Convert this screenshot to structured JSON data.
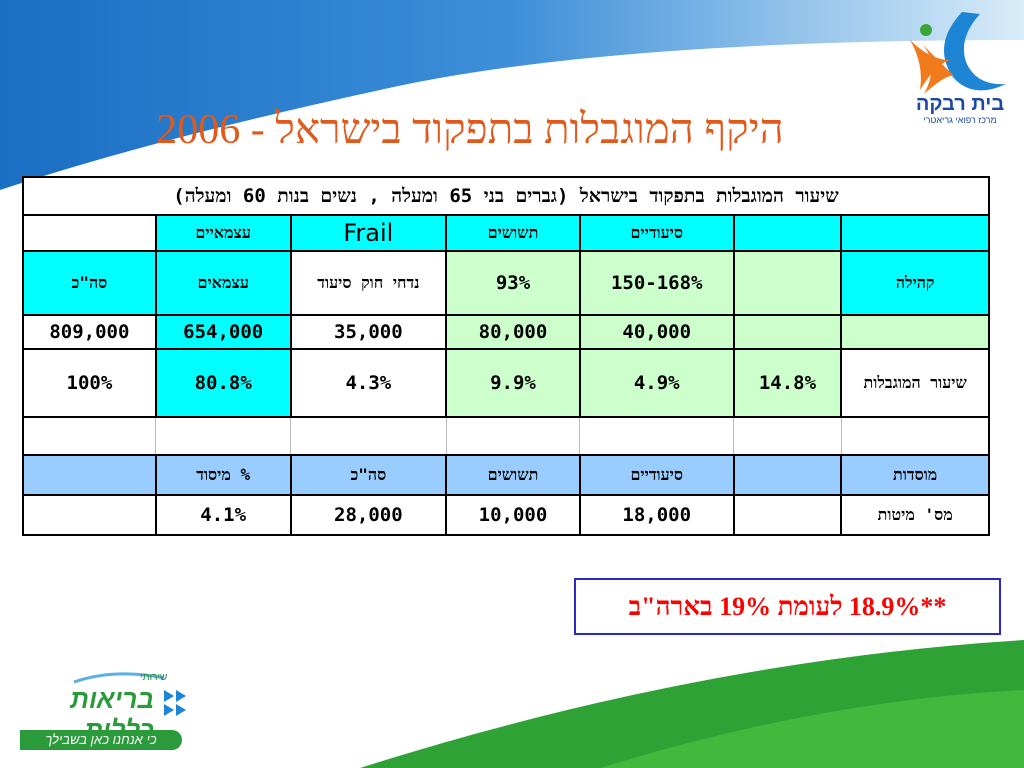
{
  "slide": {
    "title": "היקף המוגבלות בתפקוד בישראל - 2006"
  },
  "logo_top": {
    "name": "בית רבקה",
    "subtitle": "מרכז רפואי גריאטרי"
  },
  "table": {
    "caption": "שיעור המוגבלות בתפקוד בישראל (גברים בני 65 ומעלה , נשים בנות 60 ומעלה)",
    "header_row": [
      "",
      "סיעודיים",
      "תשושים",
      "Frail",
      "עצמאיים",
      ""
    ],
    "community_row": [
      "קהילה",
      "",
      "150-168%",
      "93%",
      "נדחי חוק סיעוד",
      "עצמאים",
      "סה\"כ"
    ],
    "counts_row": [
      "",
      "",
      "40,000",
      "80,000",
      "35,000",
      "654,000",
      "809,000"
    ],
    "rates_row": [
      "שיעור המוגבלות",
      "14.8%",
      "4.9%",
      "9.9%",
      "4.3%",
      "80.8%",
      "100%"
    ],
    "institutions_header": [
      "מוסדות",
      "",
      "סיעודיים",
      "תשושים",
      "סה\"כ",
      "% מיסוד",
      ""
    ],
    "beds_row": [
      "מס' מיטות",
      "",
      "18,000",
      "10,000",
      "28,000",
      "4.1%",
      ""
    ]
  },
  "note": {
    "text": "**18.9% לעומת 19% בארה\"ב"
  },
  "logo_bottom": {
    "top_text": "שירותי",
    "name": "בריאות כללית",
    "tagline": "כי אנחנו כאן בשבילך"
  },
  "colors": {
    "title": "#e05a1c",
    "cyan": "#00ffff",
    "green": "#ccffcc",
    "sky": "#99ccff",
    "note_text": "#ff0000",
    "sky_band": "#1f73c8",
    "grass": "#2fa236"
  }
}
